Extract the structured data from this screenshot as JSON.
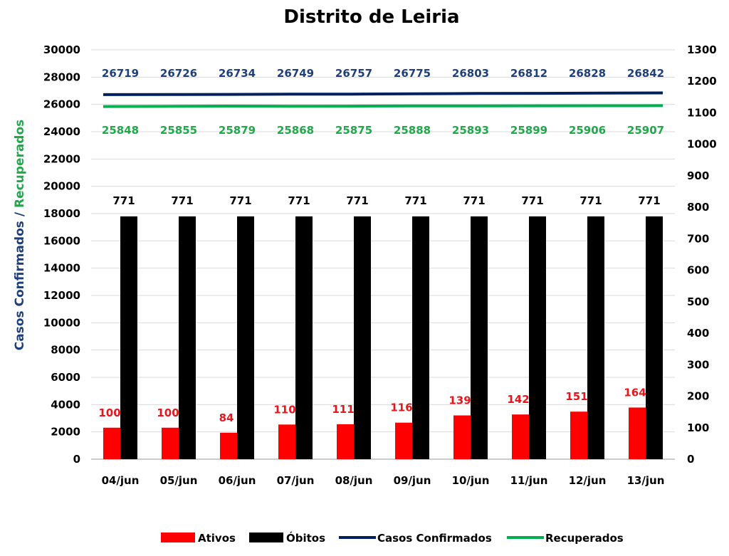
{
  "chart_data": {
    "type": "bar",
    "title": "Distrito de Leiria",
    "ylabel_part1": "Casos Confirmados",
    "ylabel_sep": " / ",
    "ylabel_part2": "Recuperados",
    "categories": [
      "04/jun",
      "05/jun",
      "06/jun",
      "07/jun",
      "08/jun",
      "09/jun",
      "10/jun",
      "11/jun",
      "12/jun",
      "13/jun"
    ],
    "left_axis": {
      "ylim": [
        0,
        30000
      ],
      "ticks": [
        "0",
        "2000",
        "4000",
        "6000",
        "8000",
        "10000",
        "12000",
        "14000",
        "16000",
        "18000",
        "20000",
        "22000",
        "24000",
        "26000",
        "28000",
        "30000"
      ]
    },
    "right_axis": {
      "ylim": [
        0,
        1300
      ],
      "ticks": [
        "0",
        "100",
        "200",
        "300",
        "400",
        "500",
        "600",
        "700",
        "800",
        "900",
        "1000",
        "1100",
        "1200",
        "1300"
      ]
    },
    "series": [
      {
        "name": "Ativos",
        "type": "bar",
        "axis": "right",
        "color": "#ff0000",
        "values": [
          100,
          100,
          84,
          110,
          111,
          116,
          139,
          142,
          151,
          164
        ]
      },
      {
        "name": "Óbitos",
        "type": "bar",
        "axis": "right",
        "color": "#000000",
        "values": [
          771,
          771,
          771,
          771,
          771,
          771,
          771,
          771,
          771,
          771
        ]
      },
      {
        "name": "Casos Confirmados",
        "type": "line",
        "axis": "left",
        "color": "#002060",
        "values": [
          26719,
          26726,
          26734,
          26749,
          26757,
          26775,
          26803,
          26812,
          26828,
          26842
        ]
      },
      {
        "name": "Recuperados",
        "type": "line",
        "axis": "left",
        "color": "#00b050",
        "values": [
          25848,
          25855,
          25879,
          25868,
          25875,
          25888,
          25893,
          25899,
          25906,
          25907
        ]
      }
    ],
    "grid": true,
    "legend_position": "bottom"
  }
}
